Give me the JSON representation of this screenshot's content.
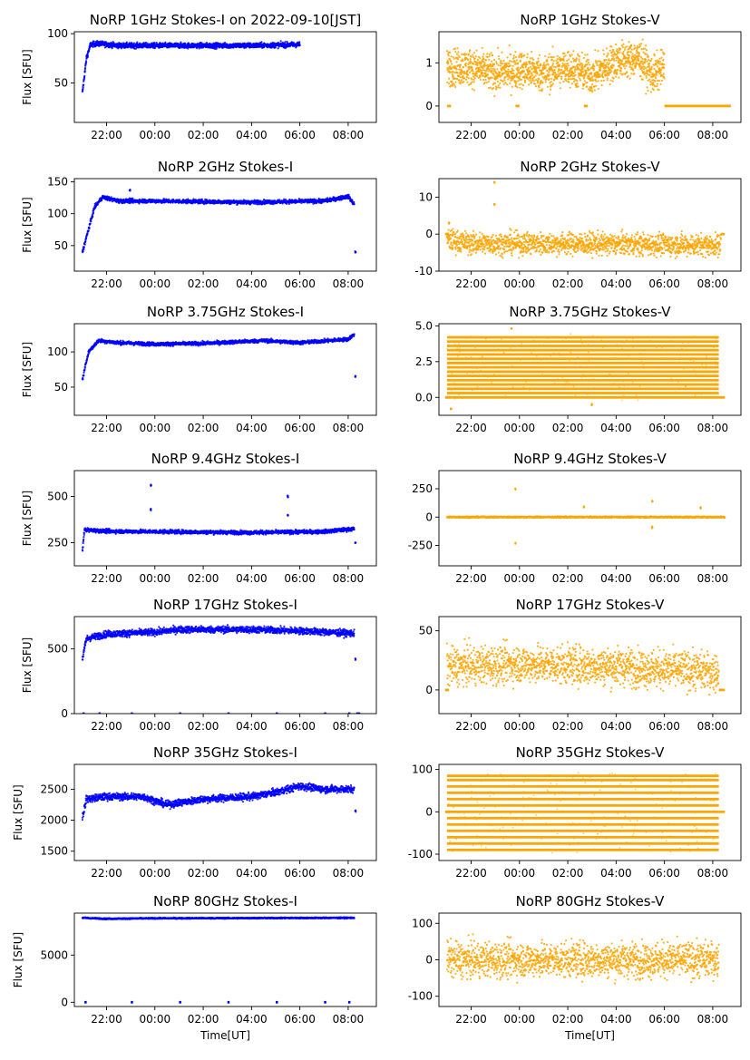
{
  "figure": {
    "x_tick_labels": [
      "22:00",
      "00:00",
      "02:00",
      "04:00",
      "06:00",
      "08:00"
    ],
    "x_label": "Time[UT]",
    "y_label": "Flux [SFU]",
    "colors": {
      "stokes_i": "#0000ff",
      "stokes_v": "#ffa500"
    }
  },
  "chart_data": [
    {
      "type": "scatter",
      "title": "NoRP 1GHz Stokes-I on 2022-09-10[JST]",
      "ylabel": "Flux [SFU]",
      "xlabel": "",
      "x_range": [
        "20:40",
        "09:10"
      ],
      "ylim": [
        10,
        102
      ],
      "yticks": [
        50,
        100
      ],
      "approx_series": [
        [
          "21:00",
          40
        ],
        [
          "21:10",
          75
        ],
        [
          "21:20",
          89
        ],
        [
          "21:40",
          90
        ],
        [
          "22:30",
          88
        ],
        [
          "01:00",
          88
        ],
        [
          "04:00",
          88
        ],
        [
          "06:00",
          89
        ]
      ],
      "band": 2.5,
      "outliers": [],
      "flat_segments": []
    },
    {
      "type": "scatter",
      "title": "NoRP 1GHz Stokes-V",
      "ylabel": "",
      "xlabel": "",
      "x_range": [
        "20:40",
        "09:10"
      ],
      "ylim": [
        -0.38,
        1.72
      ],
      "yticks": [
        0,
        1
      ],
      "approx_series": [
        [
          "21:00",
          0.9
        ],
        [
          "22:00",
          0.9
        ],
        [
          "23:00",
          0.75
        ],
        [
          "00:00",
          0.85
        ],
        [
          "01:00",
          0.75
        ],
        [
          "02:00",
          0.9
        ],
        [
          "03:00",
          0.7
        ],
        [
          "04:00",
          1.05
        ],
        [
          "05:00",
          1.1
        ],
        [
          "05:30",
          0.7
        ],
        [
          "06:00",
          0.9
        ]
      ],
      "band": 0.4,
      "outliers": [],
      "flat_segments": [
        [
          [
            "21:00",
            "21:10"
          ],
          0
        ],
        [
          [
            "23:50",
            "00:00"
          ],
          0
        ],
        [
          [
            "02:40",
            "02:50"
          ],
          0
        ],
        [
          [
            "06:00",
            "08:45"
          ],
          0
        ]
      ]
    },
    {
      "type": "scatter",
      "title": "NoRP 2GHz Stokes-I",
      "ylabel": "Flux [SFU]",
      "xlabel": "",
      "x_range": [
        "20:40",
        "09:10"
      ],
      "ylim": [
        10,
        155
      ],
      "yticks": [
        50,
        100,
        150
      ],
      "approx_series": [
        [
          "21:00",
          40
        ],
        [
          "21:30",
          110
        ],
        [
          "21:50",
          126
        ],
        [
          "22:30",
          120
        ],
        [
          "00:00",
          120
        ],
        [
          "04:00",
          118
        ],
        [
          "07:00",
          120
        ],
        [
          "08:00",
          127
        ],
        [
          "08:15",
          115
        ]
      ],
      "band": 3,
      "outliers": [
        [
          "22:58",
          137
        ],
        [
          "08:18",
          40
        ]
      ],
      "flat_segments": []
    },
    {
      "type": "scatter",
      "title": "NoRP 2GHz Stokes-V",
      "ylabel": "",
      "xlabel": "",
      "x_range": [
        "20:40",
        "09:10"
      ],
      "ylim": [
        -10,
        15
      ],
      "yticks": [
        -10,
        0,
        10
      ],
      "approx_series": [
        [
          "21:00",
          -1.5
        ],
        [
          "22:00",
          -2.5
        ],
        [
          "00:00",
          -2.5
        ],
        [
          "04:00",
          -2.7
        ],
        [
          "08:20",
          -3
        ]
      ],
      "band": 2.8,
      "outliers": [
        [
          "22:58",
          14
        ],
        [
          "22:58",
          8
        ],
        [
          "21:05",
          3
        ]
      ],
      "flat_segments": [
        [
          [
            "20:55",
            "21:05"
          ],
          0
        ],
        [
          [
            "08:20",
            "08:30"
          ],
          0
        ]
      ]
    },
    {
      "type": "scatter",
      "title": "NoRP 3.75GHz Stokes-I",
      "ylabel": "Flux [SFU]",
      "xlabel": "",
      "x_range": [
        "20:40",
        "09:10"
      ],
      "ylim": [
        10,
        140
      ],
      "yticks": [
        50,
        100
      ],
      "approx_series": [
        [
          "21:00",
          60
        ],
        [
          "21:15",
          100
        ],
        [
          "21:40",
          116
        ],
        [
          "22:30",
          113
        ],
        [
          "00:00",
          111
        ],
        [
          "02:00",
          112
        ],
        [
          "04:30",
          116
        ],
        [
          "06:00",
          113
        ],
        [
          "08:00",
          118
        ],
        [
          "08:15",
          125
        ]
      ],
      "band": 2.5,
      "outliers": [
        [
          "08:18",
          65
        ]
      ],
      "flat_segments": []
    },
    {
      "type": "scatter",
      "title": "NoRP 3.75GHz Stokes-V",
      "ylabel": "",
      "xlabel": "",
      "x_range": [
        "20:40",
        "09:10"
      ],
      "ylim": [
        -1.25,
        5.15
      ],
      "yticks": [
        0.0,
        2.5,
        5.0
      ],
      "ytick_labels": [
        "0.0",
        "2.5",
        "5.0"
      ],
      "levels": [
        0,
        0.3,
        0.6,
        0.9,
        1.2,
        1.5,
        1.8,
        2.1,
        2.4,
        2.7,
        3.0,
        3.3,
        3.6,
        3.9,
        4.2
      ],
      "level_range": [
        "21:00",
        "08:15"
      ],
      "outliers": [
        [
          "21:10",
          -0.8
        ],
        [
          "03:00",
          -0.5
        ],
        [
          "23:40",
          4.8
        ]
      ],
      "flat_segments": [
        [
          [
            "20:55",
            "21:05"
          ],
          0
        ],
        [
          [
            "08:15",
            "08:30"
          ],
          0
        ]
      ]
    },
    {
      "type": "scatter",
      "title": "NoRP 9.4GHz Stokes-I",
      "ylabel": "Flux [SFU]",
      "xlabel": "",
      "x_range": [
        "20:40",
        "09:10"
      ],
      "ylim": [
        125,
        640
      ],
      "yticks": [
        250,
        500
      ],
      "approx_series": [
        [
          "21:00",
          205
        ],
        [
          "21:05",
          320
        ],
        [
          "22:00",
          312
        ],
        [
          "00:00",
          310
        ],
        [
          "04:00",
          305
        ],
        [
          "07:00",
          310
        ],
        [
          "08:15",
          325
        ]
      ],
      "band": 10,
      "outliers": [
        [
          "23:50",
          560
        ],
        [
          "23:50",
          430
        ],
        [
          "05:30",
          500
        ],
        [
          "05:30",
          400
        ],
        [
          "08:18",
          250
        ]
      ],
      "flat_segments": []
    },
    {
      "type": "scatter",
      "title": "NoRP 9.4GHz Stokes-V",
      "ylabel": "",
      "xlabel": "",
      "x_range": [
        "20:40",
        "09:10"
      ],
      "ylim": [
        -430,
        410
      ],
      "yticks": [
        -250,
        0,
        250
      ],
      "approx_series": [
        [
          "21:00",
          0
        ],
        [
          "08:30",
          0
        ]
      ],
      "band": 6,
      "outliers": [
        [
          "23:50",
          250
        ],
        [
          "23:50",
          -230
        ],
        [
          "02:40",
          90
        ],
        [
          "05:30",
          140
        ],
        [
          "05:30",
          -90
        ],
        [
          "07:30",
          80
        ]
      ],
      "flat_segments": []
    },
    {
      "type": "scatter",
      "title": "NoRP 17GHz Stokes-I",
      "ylabel": "Flux [SFU]",
      "xlabel": "",
      "x_range": [
        "20:40",
        "09:10"
      ],
      "ylim": [
        0,
        750
      ],
      "yticks": [
        0,
        500
      ],
      "approx_series": [
        [
          "21:00",
          420
        ],
        [
          "21:10",
          580
        ],
        [
          "22:00",
          615
        ],
        [
          "00:00",
          630
        ],
        [
          "01:00",
          650
        ],
        [
          "04:00",
          650
        ],
        [
          "06:00",
          640
        ],
        [
          "08:15",
          620
        ]
      ],
      "band": 25,
      "outliers": [
        [
          "08:18",
          420
        ]
      ],
      "flat_segments": [
        [
          [
            "21:00",
            "21:05"
          ],
          0
        ],
        [
          [
            "21:40",
            "21:45"
          ],
          0
        ],
        [
          [
            "23:00",
            "23:05"
          ],
          0
        ],
        [
          [
            "01:00",
            "01:05"
          ],
          0
        ],
        [
          [
            "03:00",
            "03:05"
          ],
          0
        ],
        [
          [
            "05:00",
            "05:05"
          ],
          0
        ],
        [
          [
            "07:00",
            "07:05"
          ],
          0
        ],
        [
          [
            "08:00",
            "08:05"
          ],
          0
        ],
        [
          [
            "08:20",
            "08:30"
          ],
          0
        ]
      ]
    },
    {
      "type": "scatter",
      "title": "NoRP 17GHz Stokes-V",
      "ylabel": "",
      "xlabel": "",
      "x_range": [
        "20:40",
        "09:10"
      ],
      "ylim": [
        -20,
        62
      ],
      "yticks": [
        0,
        50
      ],
      "approx_series": [
        [
          "21:00",
          20
        ],
        [
          "00:00",
          22
        ],
        [
          "04:00",
          20
        ],
        [
          "08:15",
          15
        ]
      ],
      "band": 15,
      "outliers": [],
      "flat_segments": [
        [
          [
            "20:55",
            "21:05"
          ],
          0
        ],
        [
          [
            "08:15",
            "08:30"
          ],
          0
        ]
      ]
    },
    {
      "type": "scatter",
      "title": "NoRP 35GHz Stokes-I",
      "ylabel": "Flux [SFU]",
      "xlabel": "",
      "x_range": [
        "20:40",
        "09:10"
      ],
      "ylim": [
        1350,
        2900
      ],
      "yticks": [
        1500,
        2000,
        2500
      ],
      "approx_series": [
        [
          "21:00",
          2050
        ],
        [
          "21:10",
          2340
        ],
        [
          "22:00",
          2380
        ],
        [
          "23:30",
          2380
        ],
        [
          "00:30",
          2250
        ],
        [
          "02:00",
          2340
        ],
        [
          "04:00",
          2380
        ],
        [
          "05:00",
          2450
        ],
        [
          "06:00",
          2550
        ],
        [
          "07:00",
          2500
        ],
        [
          "08:15",
          2500
        ]
      ],
      "band": 55,
      "outliers": [
        [
          "08:18",
          2150
        ]
      ],
      "flat_segments": []
    },
    {
      "type": "scatter",
      "title": "NoRP 35GHz Stokes-V",
      "ylabel": "",
      "xlabel": "",
      "x_range": [
        "20:40",
        "09:10"
      ],
      "ylim": [
        -115,
        112
      ],
      "yticks": [
        -100,
        0,
        100
      ],
      "levels": [
        -90,
        -75,
        -60,
        -45,
        -30,
        -15,
        0,
        15,
        30,
        45,
        60,
        75,
        85
      ],
      "level_range": [
        "21:00",
        "08:15"
      ],
      "outliers": [],
      "flat_segments": [
        [
          [
            "20:55",
            "21:05"
          ],
          0
        ],
        [
          [
            "08:15",
            "08:30"
          ],
          0
        ]
      ]
    },
    {
      "type": "scatter",
      "title": "NoRP 80GHz Stokes-I",
      "ylabel": "Flux [SFU]",
      "xlabel": "Time[UT]",
      "x_range": [
        "20:40",
        "09:10"
      ],
      "ylim": [
        -450,
        9450
      ],
      "yticks": [
        0,
        5000
      ],
      "approx_series": [
        [
          "21:00",
          8950
        ],
        [
          "22:00",
          8850
        ],
        [
          "00:00",
          8900
        ],
        [
          "04:00",
          8920
        ],
        [
          "08:15",
          8950
        ]
      ],
      "band": 60,
      "outliers": [],
      "flat_segments": [
        [
          [
            "21:05",
            "21:10"
          ],
          0
        ],
        [
          [
            "23:00",
            "23:05"
          ],
          0
        ],
        [
          [
            "01:00",
            "01:05"
          ],
          0
        ],
        [
          [
            "03:00",
            "03:05"
          ],
          0
        ],
        [
          [
            "05:00",
            "05:05"
          ],
          0
        ],
        [
          [
            "07:00",
            "07:05"
          ],
          0
        ],
        [
          [
            "08:00",
            "08:05"
          ],
          0
        ]
      ]
    },
    {
      "type": "scatter",
      "title": "NoRP 80GHz Stokes-V",
      "ylabel": "",
      "xlabel": "Time[UT]",
      "x_range": [
        "20:40",
        "09:10"
      ],
      "ylim": [
        -128,
        128
      ],
      "yticks": [
        -100,
        0,
        100
      ],
      "approx_series": [
        [
          "21:00",
          0
        ],
        [
          "08:15",
          0
        ]
      ],
      "band": 45,
      "outliers": [],
      "flat_segments": []
    }
  ]
}
